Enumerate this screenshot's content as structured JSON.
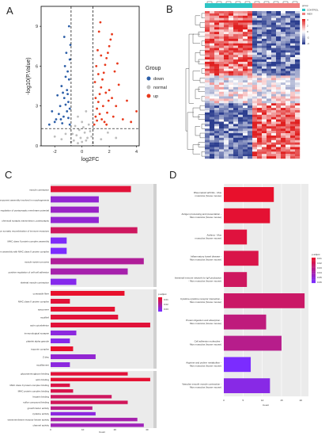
{
  "panels": {
    "a": "A",
    "b": "B",
    "c": "C",
    "d": "D"
  },
  "chart_data": [
    {
      "type": "scatter",
      "panel": "A",
      "xlabel": "log2FC",
      "ylabel": "-log10(P.Value)",
      "xlim": [
        -3,
        4.2
      ],
      "ylim": [
        0,
        10.5
      ],
      "xticks": [
        "-2",
        "0",
        "2",
        "4"
      ],
      "yticks": [
        "0",
        "3",
        "6",
        "9"
      ],
      "thresholds": {
        "x": [
          -0.8,
          0.8
        ],
        "y": 1.3
      },
      "legend_title": "Group",
      "legend": [
        {
          "label": "down",
          "color": "#2d5fa8"
        },
        {
          "label": "normal",
          "color": "#bdbdbd"
        },
        {
          "label": "up",
          "color": "#e8391c"
        }
      ],
      "points": {
        "down": [
          [
            -0.9,
            1.6
          ],
          [
            -1.0,
            2.1
          ],
          [
            -1.1,
            2.6
          ],
          [
            -1.2,
            3.1
          ],
          [
            -1.3,
            3.6
          ],
          [
            -1.4,
            4.0
          ],
          [
            -1.5,
            4.5
          ],
          [
            -0.95,
            5.0
          ],
          [
            -1.05,
            5.6
          ],
          [
            -1.25,
            6.0
          ],
          [
            -0.9,
            6.5
          ],
          [
            -1.6,
            3.0
          ],
          [
            -1.7,
            2.4
          ],
          [
            -1.8,
            3.8
          ],
          [
            -1.9,
            2.0
          ],
          [
            -2.0,
            1.8
          ],
          [
            -2.2,
            2.6
          ],
          [
            -1.15,
            7.0
          ],
          [
            -0.85,
            7.6
          ],
          [
            -1.35,
            2.2
          ],
          [
            -1.45,
            1.7
          ],
          [
            -1.0,
            3.3
          ],
          [
            -1.1,
            4.2
          ],
          [
            -0.9,
            2.8
          ],
          [
            -1.2,
            5.2
          ],
          [
            -1.55,
            2.0
          ],
          [
            -2.4,
            1.6
          ],
          [
            -1.3,
            8.2
          ],
          [
            -0.95,
            9.0
          ],
          [
            -1.05,
            3.9
          ]
        ],
        "up": [
          [
            0.9,
            1.6
          ],
          [
            1.0,
            2.2
          ],
          [
            1.1,
            2.8
          ],
          [
            1.2,
            3.3
          ],
          [
            1.3,
            3.9
          ],
          [
            1.4,
            4.4
          ],
          [
            1.5,
            5.0
          ],
          [
            1.6,
            5.5
          ],
          [
            1.7,
            6.1
          ],
          [
            1.8,
            6.6
          ],
          [
            1.9,
            7.0
          ],
          [
            2.0,
            7.5
          ],
          [
            2.1,
            8.0
          ],
          [
            2.2,
            8.4
          ],
          [
            0.95,
            4.8
          ],
          [
            1.05,
            6.0
          ],
          [
            1.15,
            7.2
          ],
          [
            1.25,
            8.6
          ],
          [
            1.35,
            9.3
          ],
          [
            1.45,
            2.0
          ],
          [
            1.55,
            3.0
          ],
          [
            1.65,
            1.8
          ],
          [
            1.75,
            4.0
          ],
          [
            1.85,
            2.5
          ],
          [
            1.95,
            3.4
          ],
          [
            2.3,
            2.2
          ],
          [
            2.5,
            3.0
          ],
          [
            2.7,
            4.6
          ],
          [
            3.0,
            2.0
          ],
          [
            3.3,
            3.4
          ],
          [
            3.6,
            1.8
          ],
          [
            4.0,
            2.6
          ],
          [
            1.1,
            1.9
          ],
          [
            1.3,
            2.4
          ],
          [
            2.4,
            5.6
          ],
          [
            2.6,
            6.2
          ],
          [
            1.2,
            5.4
          ],
          [
            1.4,
            6.8
          ],
          [
            2.0,
            4.2
          ],
          [
            2.2,
            3.6
          ],
          [
            1.0,
            3.6
          ],
          [
            1.8,
            1.6
          ]
        ],
        "normal": [
          [
            -0.6,
            0.4
          ],
          [
            -0.4,
            0.8
          ],
          [
            -0.2,
            1.2
          ],
          [
            0.0,
            0.3
          ],
          [
            0.2,
            1.0
          ],
          [
            0.4,
            0.6
          ],
          [
            0.6,
            1.1
          ],
          [
            -0.5,
            1.5
          ],
          [
            0.5,
            1.6
          ],
          [
            -0.3,
            0.2
          ],
          [
            0.3,
            0.4
          ],
          [
            -0.7,
            0.9
          ],
          [
            0.7,
            0.7
          ],
          [
            -0.1,
            0.6
          ],
          [
            0.1,
            1.4
          ],
          [
            -1.5,
            0.5
          ],
          [
            -1.2,
            0.9
          ],
          [
            -2.0,
            0.7
          ],
          [
            1.4,
            0.5
          ],
          [
            1.9,
            1.0
          ],
          [
            2.5,
            0.6
          ],
          [
            -0.8,
            0.3
          ],
          [
            0.8,
            0.2
          ],
          [
            0.0,
            1.8
          ],
          [
            -0.3,
            2.2
          ],
          [
            0.3,
            2.6
          ]
        ]
      }
    },
    {
      "type": "heatmap",
      "panel": "B",
      "legend_title": "group",
      "groups": [
        "CONTROL",
        "INEX"
      ],
      "group_colors": [
        "#2ec4c4",
        "#f08080"
      ],
      "color_scale": [
        "#2c3e8f",
        "#ffffff",
        "#e02020"
      ],
      "scale_ticks": [
        "4",
        "2",
        "0",
        "-2",
        "-4"
      ]
    },
    {
      "type": "bar",
      "panel": "C",
      "xlabel": "Count",
      "xticks": [
        "0",
        "10",
        "20",
        "30"
      ],
      "xlim": [
        0,
        32
      ],
      "legend_title": "p.adjust",
      "legend_ticks": [
        "0.01",
        "0.02",
        "0.03"
      ],
      "color_scale": [
        "#e8102c",
        "#7b2cff"
      ],
      "groups": [
        {
          "name": "BP",
          "categories": [
            "muscle contraction",
            "cellular component assembly involved in morphogenesis",
            "regulation of postsynaptic membrane potential",
            "chemical synaptic transmission, postsynaptic",
            "adaptive immune response based on somatic recombination of immune receptors",
            "MHC class II protein complex assembly",
            "peptide antigen assembly with MHC class II protein complex",
            "muscle system process",
            "positive regulation of cell-cell adhesion",
            "skeletal muscle contraction"
          ],
          "values": [
            25,
            15,
            15,
            15,
            27,
            5,
            5,
            29,
            24,
            8
          ],
          "padj": [
            0.004,
            0.028,
            0.026,
            0.028,
            0.01,
            0.034,
            0.035,
            0.019,
            0.022,
            0.032
          ]
        },
        {
          "name": "CC",
          "categories": [
            "contractile fiber",
            "MHC class II protein complex",
            "sarcomere",
            "myofibril",
            "actin cytoskeleton",
            "immunological synapse",
            "platelet alpha granule",
            "troponin complex",
            "Z disc",
            "myofilament"
          ],
          "values": [
            23,
            6,
            20,
            21,
            31,
            8,
            6,
            7,
            14,
            6
          ],
          "padj": [
            0.002,
            0.004,
            0.003,
            0.004,
            0.004,
            0.03,
            0.032,
            0.002,
            0.028,
            0.03
          ]
        },
        {
          "name": "MF",
          "categories": [
            "glycosaminoglycan binding",
            "actin binding",
            "MHC class II protein complex binding",
            "MHC protein complex binding",
            "heparin binding",
            "sulfur compound binding",
            "growth factor activity",
            "cytokine activity",
            "transmembrane receptor kinase activity",
            "channel activity"
          ],
          "values": [
            24,
            31,
            6,
            7,
            19,
            24,
            13,
            14,
            27,
            29
          ],
          "padj": [
            0.004,
            0.003,
            0.006,
            0.007,
            0.01,
            0.009,
            0.016,
            0.03,
            0.022,
            0.024
          ]
        }
      ]
    },
    {
      "type": "bar",
      "panel": "D",
      "xlabel": "Count",
      "xticks": [
        "0",
        "5",
        "10",
        "15",
        "20"
      ],
      "xlim": [
        0,
        22
      ],
      "legend_title": "p.adjust",
      "legend_ticks": [
        "0.01",
        "0.02",
        "0.03",
        "0.04",
        "0.05",
        "0.06"
      ],
      "color_scale": [
        "#e8102c",
        "#7b2cff"
      ],
      "categories": [
        "Rheumatoid arthritis - Mus musculus (house mouse)",
        "Antigen processing and presentation - Mus musculus (house mouse)",
        "Asthma - Mus musculus (house mouse)",
        "Inflammatory bowel disease - Mus musculus (house mouse)",
        "Intestinal immune network for IgA production - Mus musculus (house mouse)",
        "Cytokine-cytokine receptor interaction - Mus musculus (house mouse)",
        "Protein digestion and absorption - Mus musculus (house mouse)",
        "Cell adhesion molecules - Mus musculus (house mouse)",
        "Arginine and proline metabolism - Mus musculus (house mouse)",
        "Vascular smooth muscle contraction - Mus musculus (house mouse)"
      ],
      "values": [
        13,
        12,
        6,
        9,
        6,
        21,
        11,
        15,
        7,
        12
      ],
      "padj": [
        0.004,
        0.006,
        0.009,
        0.012,
        0.018,
        0.02,
        0.026,
        0.03,
        0.062,
        0.055
      ]
    }
  ]
}
